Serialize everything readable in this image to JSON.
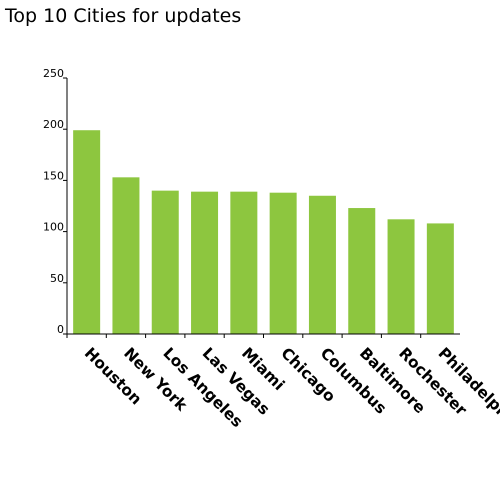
{
  "title": "Top 10 Cities for updates",
  "chart_data": {
    "type": "bar",
    "title": "Top 10 Cities for updates",
    "xlabel": "",
    "ylabel": "",
    "categories": [
      "Houston",
      "New York",
      "Los Angeles",
      "Las Vegas",
      "Miami",
      "Chicago",
      "Columbus",
      "Baltimore",
      "Rochester",
      "Philadelphia"
    ],
    "values": [
      199,
      153,
      140,
      139,
      139,
      138,
      135,
      123,
      112,
      108
    ],
    "ylim": [
      0,
      250
    ],
    "yticks": [
      0,
      50,
      100,
      150,
      200,
      250
    ],
    "grid": false,
    "legend": "none",
    "bar_color": "#8dc63f"
  }
}
